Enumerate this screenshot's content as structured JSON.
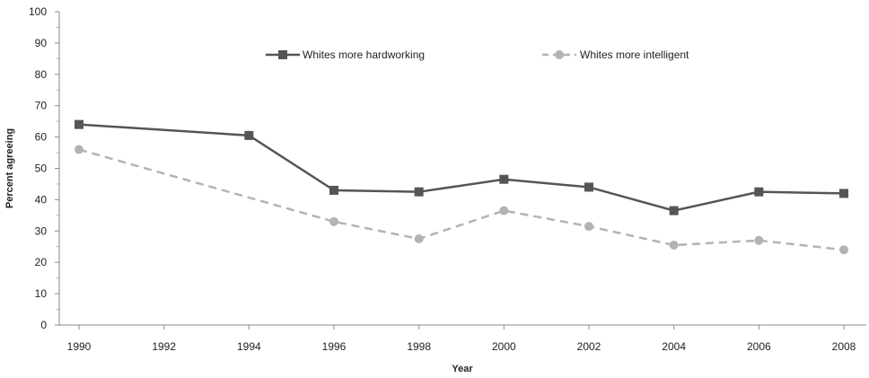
{
  "chart_data": {
    "type": "line",
    "title": "",
    "xlabel": "Year",
    "ylabel": "Percent agreeing",
    "x_ticks": [
      "1990",
      "1992",
      "1994",
      "1996",
      "1998",
      "2000",
      "2002",
      "2004",
      "2006",
      "2008"
    ],
    "y_ticks": [
      "0",
      "10",
      "20",
      "30",
      "40",
      "50",
      "60",
      "70",
      "80",
      "90",
      "100"
    ],
    "xlim": [
      1990,
      2008
    ],
    "ylim": [
      0,
      100
    ],
    "grid": false,
    "legend_position": "top",
    "series": [
      {
        "name": "Whites more hardworking",
        "color": "#555555",
        "line_style": "solid",
        "marker": "square",
        "points": [
          {
            "x": 1990,
            "y": 64
          },
          {
            "x": 1994,
            "y": 60.5
          },
          {
            "x": 1996,
            "y": 43
          },
          {
            "x": 1998,
            "y": 42.5
          },
          {
            "x": 2000,
            "y": 46.5
          },
          {
            "x": 2002,
            "y": 44
          },
          {
            "x": 2004,
            "y": 36.5
          },
          {
            "x": 2006,
            "y": 42.5
          },
          {
            "x": 2008,
            "y": 42
          }
        ]
      },
      {
        "name": "Whites more intelligent",
        "color": "#b3b3b3",
        "line_style": "dashed",
        "marker": "circle",
        "points": [
          {
            "x": 1990,
            "y": 56
          },
          {
            "x": 1996,
            "y": 33
          },
          {
            "x": 1998,
            "y": 27.5
          },
          {
            "x": 2000,
            "y": 36.5
          },
          {
            "x": 2002,
            "y": 31.5
          },
          {
            "x": 2004,
            "y": 25.5
          },
          {
            "x": 2006,
            "y": 27
          },
          {
            "x": 2008,
            "y": 24
          }
        ]
      }
    ]
  }
}
